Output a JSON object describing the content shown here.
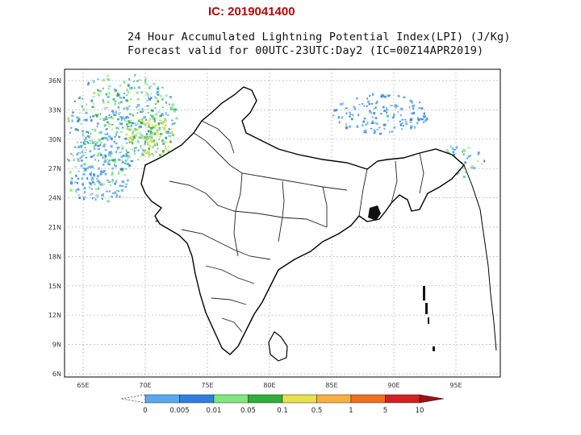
{
  "header": {
    "ic_label": "IC: 2019041400",
    "title_line1": "24 Hour Accumulated Lightning Potential Index(LPI) (J/Kg)",
    "title_line2": "Forecast valid for 00UTC-23UTC:Day2 (IC=00Z14APR2019)"
  },
  "map": {
    "lon_ticks": [
      "65E",
      "70E",
      "75E",
      "80E",
      "85E",
      "90E",
      "95E"
    ],
    "lat_ticks": [
      "36N",
      "33N",
      "30N",
      "27N",
      "24N",
      "21N",
      "18N",
      "15N",
      "12N",
      "9N",
      "6N"
    ]
  },
  "legend": {
    "labels": [
      "0",
      "0.005",
      "0.01",
      "0.05",
      "0.1",
      "0.5",
      "1",
      "5",
      "10"
    ],
    "colors": [
      "#5aa9f0",
      "#2f7fe0",
      "#7ee87e",
      "#2fae3a",
      "#e8e04a",
      "#f6b040",
      "#f07020",
      "#d42020",
      "#a01010"
    ]
  }
}
